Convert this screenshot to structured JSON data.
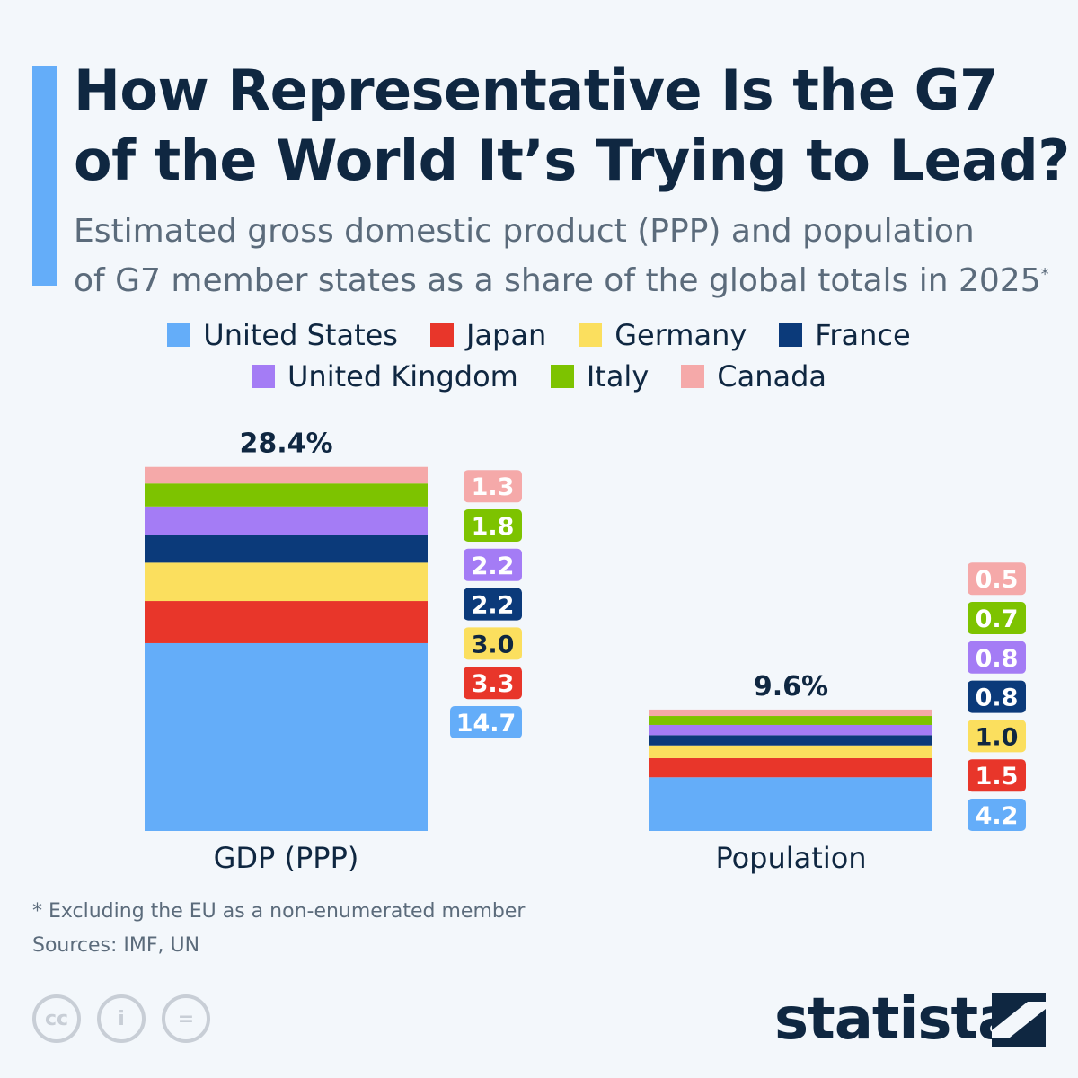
{
  "title_line1": "How Representative Is the G7",
  "title_line2": "of the World It’s Trying to Lead?",
  "subtitle_line1": "Estimated gross domestic product (PPP) and population",
  "subtitle_line2": "of G7 member states as a share of the global totals in 2025",
  "subtitle_mark": "*",
  "footnote": "* Excluding the EU as a non-enumerated member",
  "sources": "Sources: IMF, UN",
  "brand": "statista",
  "license_icons": [
    "creative-commons-icon",
    "attribution-icon",
    "no-derivatives-icon"
  ],
  "chart_data": {
    "type": "bar",
    "stacked": true,
    "unit": "%",
    "categories": [
      "GDP (PPP)",
      "Population"
    ],
    "totals": [
      "28.4%",
      "9.6%"
    ],
    "series": [
      {
        "name": "United States",
        "color": "#64adf9",
        "values": [
          14.7,
          4.2
        ],
        "labels": [
          "14.7",
          "4.2"
        ]
      },
      {
        "name": "Japan",
        "color": "#e8362a",
        "values": [
          3.3,
          1.5
        ],
        "labels": [
          "3.3",
          "1.5"
        ]
      },
      {
        "name": "Germany",
        "color": "#fbdf5e",
        "values": [
          3.0,
          1.0
        ],
        "labels": [
          "3.0",
          "1.0"
        ]
      },
      {
        "name": "France",
        "color": "#0b3a7a",
        "values": [
          2.2,
          0.8
        ],
        "labels": [
          "2.2",
          "0.8"
        ]
      },
      {
        "name": "United Kingdom",
        "color": "#a47cf5",
        "values": [
          2.2,
          0.8
        ],
        "labels": [
          "2.2",
          "0.8"
        ]
      },
      {
        "name": "Italy",
        "color": "#7dc300",
        "values": [
          1.8,
          0.7
        ],
        "labels": [
          "1.8",
          "0.7"
        ]
      },
      {
        "name": "Canada",
        "color": "#f5a9a9",
        "values": [
          1.3,
          0.5
        ],
        "labels": [
          "1.3",
          "0.5"
        ]
      }
    ],
    "legend_placement": "top",
    "grid": false
  }
}
